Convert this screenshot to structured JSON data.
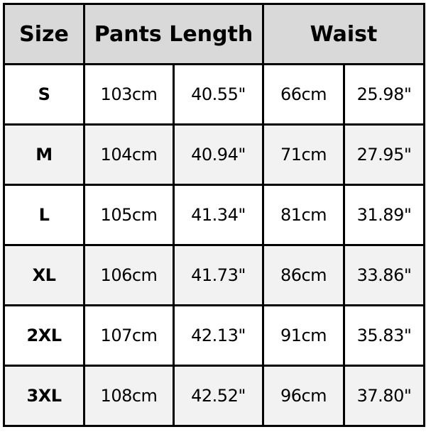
{
  "headers": {
    "size": "Size",
    "pants_length": "Pants Length",
    "waist": "Waist"
  },
  "colors": {
    "header_bg": "#d9d9d9",
    "alt_row_bg": "#f2f2f2",
    "border": "#000000"
  },
  "rows": [
    {
      "size": "S",
      "length_cm": "103cm",
      "length_in": "40.55\"",
      "waist_cm": "66cm",
      "waist_in": "25.98\""
    },
    {
      "size": "M",
      "length_cm": "104cm",
      "length_in": "40.94\"",
      "waist_cm": "71cm",
      "waist_in": "27.95\""
    },
    {
      "size": "L",
      "length_cm": "105cm",
      "length_in": "41.34\"",
      "waist_cm": "81cm",
      "waist_in": "31.89\""
    },
    {
      "size": "XL",
      "length_cm": "106cm",
      "length_in": "41.73\"",
      "waist_cm": "86cm",
      "waist_in": "33.86\""
    },
    {
      "size": "2XL",
      "length_cm": "107cm",
      "length_in": "42.13\"",
      "waist_cm": "91cm",
      "waist_in": "35.83\""
    },
    {
      "size": "3XL",
      "length_cm": "108cm",
      "length_in": "42.52\"",
      "waist_cm": "96cm",
      "waist_in": "37.80\""
    }
  ]
}
